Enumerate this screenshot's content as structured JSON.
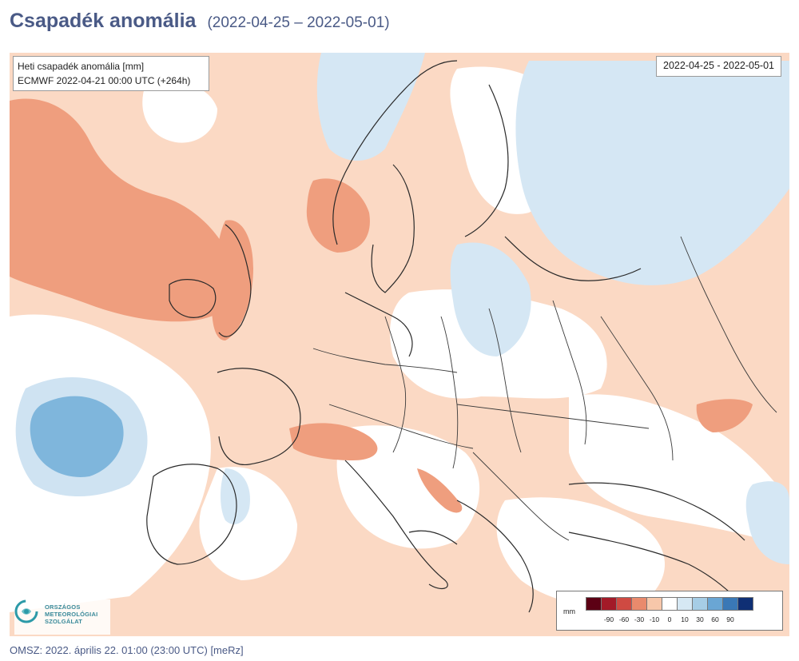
{
  "header": {
    "title": "Csapadék anomália",
    "date_range": "(2022-04-25 – 2022-05-01)"
  },
  "map": {
    "info_line1": "Heti csapadék anomália [mm]",
    "info_line2": "ECMWF 2022-04-21 00:00 UTC (+264h)",
    "date_label": "2022-04-25 - 2022-05-01",
    "logo_lines": [
      "ORSZÁGOS",
      "METEOROLÓGIAI",
      "SZOLGÁLAT"
    ],
    "legend": {
      "unit": "mm",
      "colors": [
        "#5c0014",
        "#a31a28",
        "#cf4a42",
        "#e98a6c",
        "#f7c7aa",
        "#ffffff",
        "#d6e8f4",
        "#a6cde6",
        "#6aa6d4",
        "#3a78b6",
        "#0f2f74"
      ],
      "ticks": [
        "-90",
        "-60",
        "-30",
        "-10",
        "0",
        "10",
        "30",
        "60",
        "90"
      ]
    }
  },
  "footer": {
    "text": "OMSZ: 2022. április 22. 01:00 (23:00  UTC)  [meRz]"
  }
}
